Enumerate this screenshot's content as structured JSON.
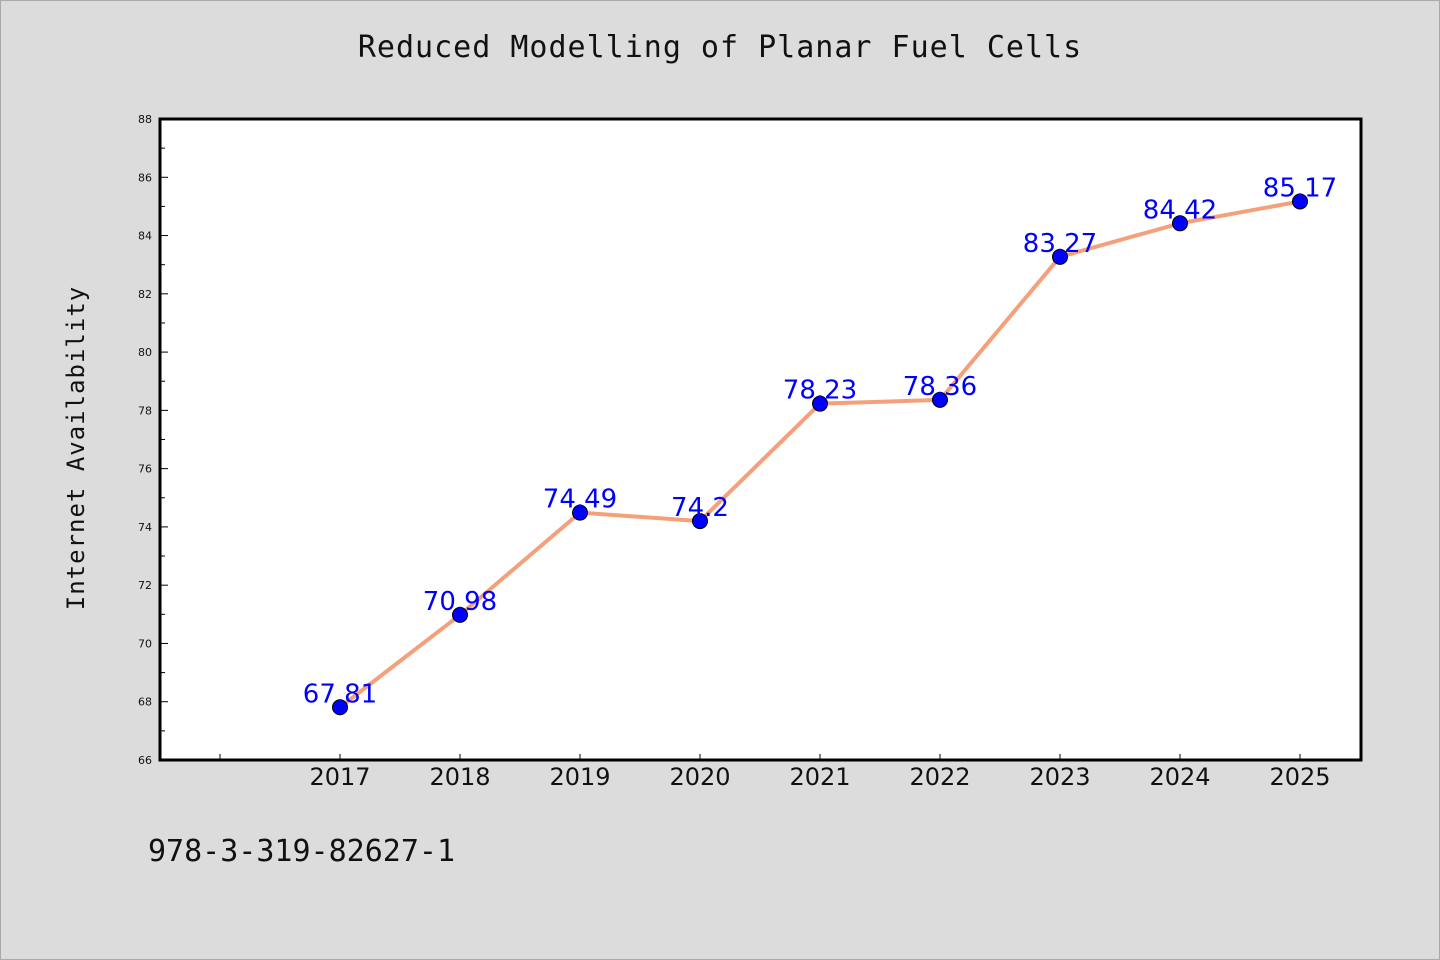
{
  "chart_data": {
    "type": "line",
    "title": "Reduced Modelling of Planar Fuel Cells",
    "xlabel": "",
    "ylabel": "Internet Availability",
    "categories": [
      "2017",
      "2018",
      "2019",
      "2020",
      "2021",
      "2022",
      "2023",
      "2024",
      "2025"
    ],
    "series": [
      {
        "values": [
          67.81,
          70.98,
          74.49,
          74.2,
          78.23,
          78.36,
          83.27,
          84.42,
          85.17
        ],
        "data_labels": [
          "67.81",
          "70.98",
          "74.49",
          "74.2",
          "78.23",
          "78.36",
          "83.27",
          "84.42",
          "85.17"
        ],
        "line_color": "#f4a07a",
        "marker_color": "#0000ff"
      }
    ],
    "ylim": [
      66,
      88
    ],
    "yticks": [
      66,
      68,
      70,
      72,
      74,
      76,
      78,
      80,
      82,
      84,
      86,
      88
    ],
    "grid": false,
    "legend": "none",
    "plot_background": "#ffffff",
    "page_background": "#dcdcdc"
  },
  "footer": {
    "isbn": "978-3-319-82627-1"
  }
}
